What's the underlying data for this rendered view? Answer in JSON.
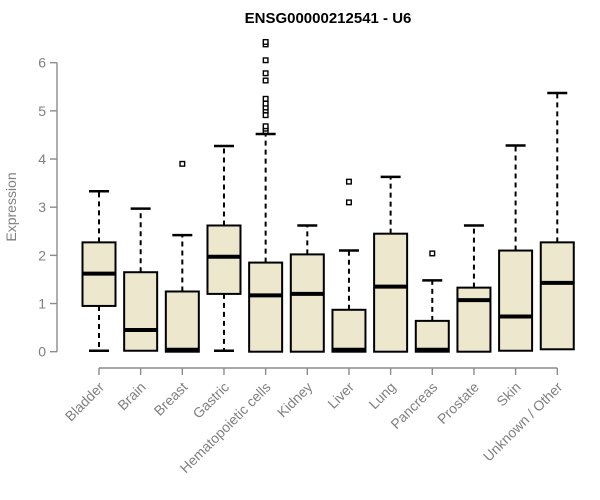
{
  "chart_data": {
    "type": "boxplot",
    "title": "ENSG00000212541 - U6",
    "xlabel": "",
    "ylabel": "Expression",
    "ylim": [
      0,
      6.5
    ],
    "yticks": [
      0,
      1,
      2,
      3,
      4,
      5,
      6
    ],
    "grid": false,
    "legend": "none",
    "categories": [
      "Bladder",
      "Brain",
      "Breast",
      "Gastric",
      "Hematopoietic cells",
      "Kidney",
      "Liver",
      "Lung",
      "Pancreas",
      "Prostate",
      "Skin",
      "Unknown / Other"
    ],
    "series": [
      {
        "name": "Bladder",
        "whisker_low": 0.02,
        "q1": 0.95,
        "median": 1.62,
        "q3": 2.27,
        "whisker_high": 3.33,
        "outliers": []
      },
      {
        "name": "Brain",
        "whisker_low": 0.02,
        "q1": 0.02,
        "median": 0.45,
        "q3": 1.65,
        "whisker_high": 2.97,
        "outliers": []
      },
      {
        "name": "Breast",
        "whisker_low": 0.0,
        "q1": 0.0,
        "median": 0.04,
        "q3": 1.25,
        "whisker_high": 2.42,
        "outliers": [
          3.9
        ]
      },
      {
        "name": "Gastric",
        "whisker_low": 0.02,
        "q1": 1.2,
        "median": 1.97,
        "q3": 2.62,
        "whisker_high": 4.27,
        "outliers": []
      },
      {
        "name": "Hematopoietic cells",
        "whisker_low": 0.0,
        "q1": 0.0,
        "median": 1.17,
        "q3": 1.85,
        "whisker_high": 4.52,
        "outliers": [
          4.58,
          4.63,
          4.68,
          4.91,
          5.01,
          5.07,
          5.15,
          5.25,
          5.63,
          5.78,
          6.05,
          6.38,
          6.43
        ]
      },
      {
        "name": "Kidney",
        "whisker_low": 0.0,
        "q1": 0.0,
        "median": 1.2,
        "q3": 2.02,
        "whisker_high": 2.62,
        "outliers": []
      },
      {
        "name": "Liver",
        "whisker_low": 0.0,
        "q1": 0.0,
        "median": 0.04,
        "q3": 0.87,
        "whisker_high": 2.1,
        "outliers": [
          3.1,
          3.53
        ]
      },
      {
        "name": "Lung",
        "whisker_low": 0.0,
        "q1": 0.0,
        "median": 1.35,
        "q3": 2.45,
        "whisker_high": 3.63,
        "outliers": []
      },
      {
        "name": "Pancreas",
        "whisker_low": 0.0,
        "q1": 0.0,
        "median": 0.04,
        "q3": 0.64,
        "whisker_high": 1.48,
        "outliers": [
          2.04
        ]
      },
      {
        "name": "Prostate",
        "whisker_low": 0.0,
        "q1": 0.0,
        "median": 1.07,
        "q3": 1.33,
        "whisker_high": 2.62,
        "outliers": []
      },
      {
        "name": "Skin",
        "whisker_low": 0.02,
        "q1": 0.02,
        "median": 0.73,
        "q3": 2.1,
        "whisker_high": 4.28,
        "outliers": []
      },
      {
        "name": "Unknown / Other",
        "whisker_low": 0.05,
        "q1": 0.05,
        "median": 1.43,
        "q3": 2.27,
        "whisker_high": 5.37,
        "outliers": []
      }
    ],
    "colors": {
      "box_fill": "#EDE7CD",
      "box_border": "#000000",
      "median": "#000000",
      "whisker": "#000000",
      "outlier_stroke": "#000000",
      "outlier_fill": "#ffffff",
      "axis_line": "#8C8C8C",
      "axis_text": "#808080",
      "title": "#000000",
      "background": "#ffffff"
    },
    "marker": "open-square-icon"
  }
}
